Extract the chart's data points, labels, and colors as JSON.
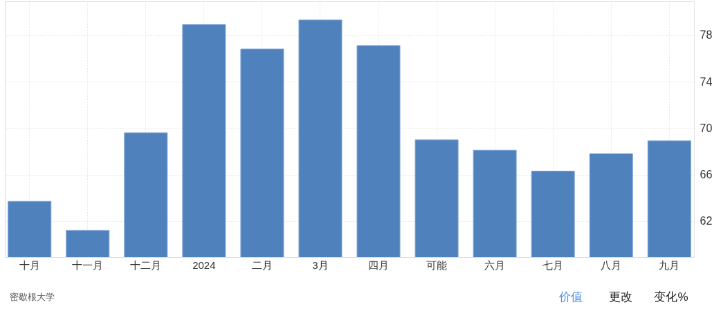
{
  "chart_data": {
    "type": "bar",
    "categories": [
      "十月",
      "十一月",
      "十二月",
      "2024",
      "二月",
      "3月",
      "四月",
      "可能",
      "六月",
      "七月",
      "八月",
      "九月"
    ],
    "values": [
      63.7,
      61.2,
      69.6,
      78.9,
      76.8,
      79.3,
      77.1,
      69.0,
      68.1,
      66.3,
      67.8,
      68.9
    ],
    "color": "#4f81bd",
    "ylim": [
      58.9,
      80.9
    ],
    "yticks": [
      62,
      66,
      70,
      74,
      78
    ],
    "grid": true,
    "annotations": [
      "密歇根大学",
      "价值",
      "更改",
      "变化%"
    ]
  }
}
